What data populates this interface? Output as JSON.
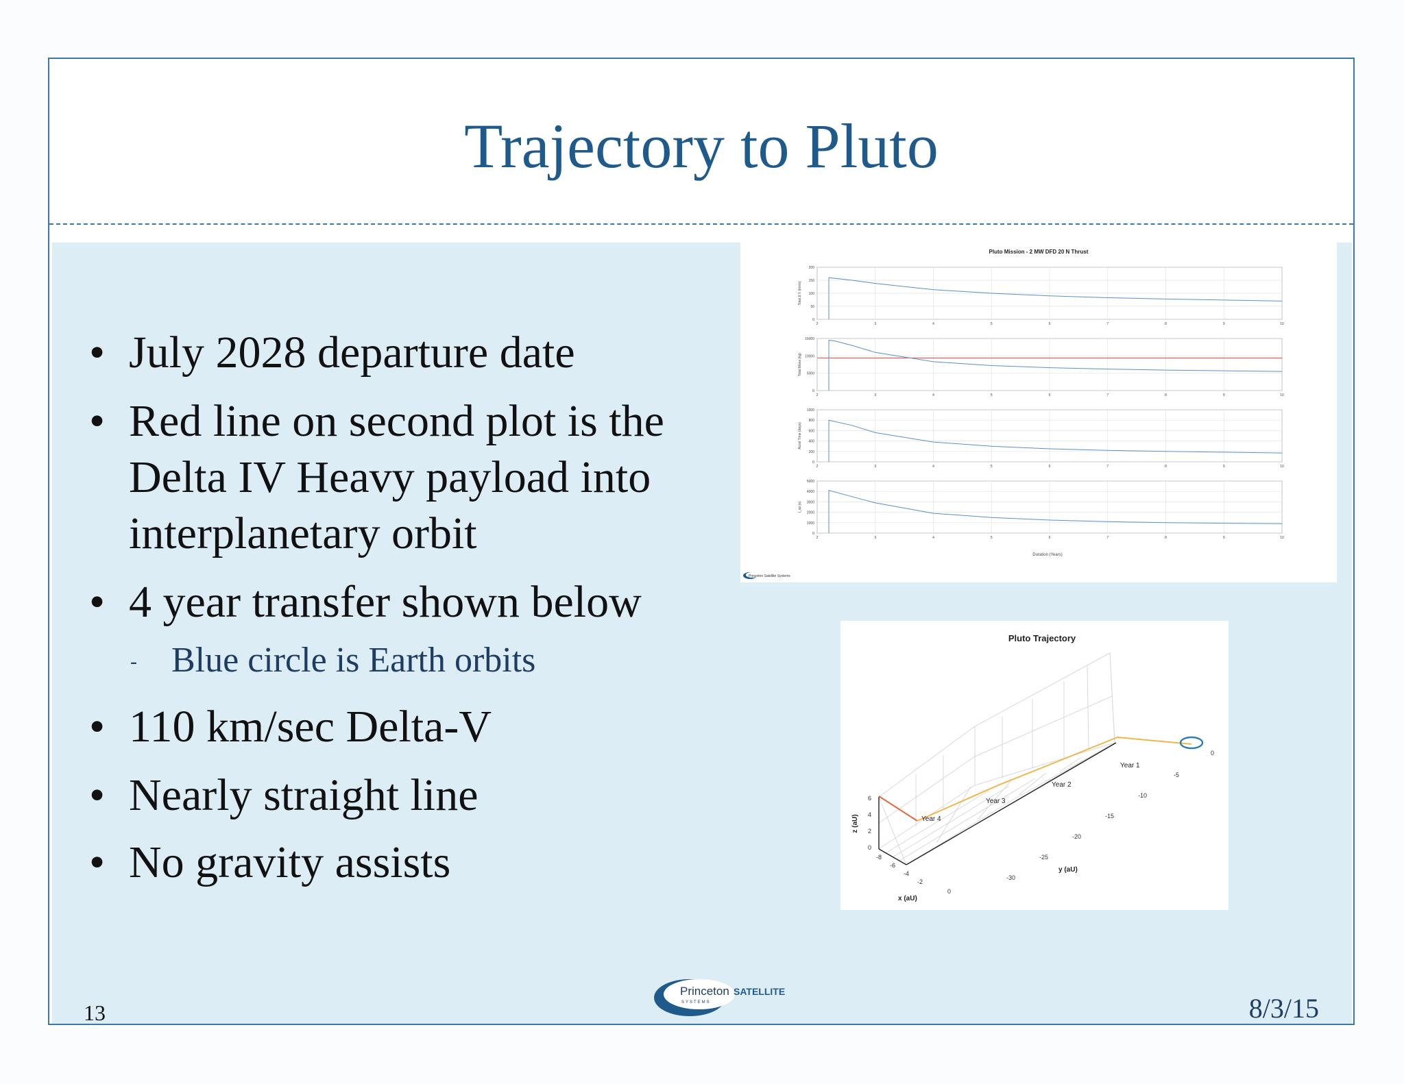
{
  "slide": {
    "title": "Trajectory to Pluto",
    "page_number": "13",
    "date": "8/3/15",
    "logo": {
      "line1": "Princeton",
      "line1b": "SATELLITE",
      "line2": "SYSTEMS"
    }
  },
  "bullets": [
    {
      "text": "July 2028 departure date"
    },
    {
      "lines": [
        "Red line on second plot is the",
        "Delta IV Heavy payload into",
        "interplanetary orbit"
      ]
    },
    {
      "text": "4 year transfer shown below"
    },
    {
      "text": "110 km/sec Delta-V"
    },
    {
      "text": "Nearly straight line"
    },
    {
      "text": "No gravity assists"
    }
  ],
  "sub_bullet": {
    "dash": "-",
    "text": "Blue circle is Earth orbits"
  },
  "chart_data": [
    {
      "type": "line",
      "title": "Pluto Mission - 2 MW DFD 20 N Thrust",
      "xlabel": "Duration (Years)",
      "xlim": [
        2,
        10
      ],
      "x_ticks": [
        "2",
        "3",
        "4",
        "5",
        "6",
        "7",
        "8",
        "9",
        "10"
      ],
      "footer": "Princeton Satellite Systems",
      "panels": [
        {
          "ylabel": "Total Δ V (km/s)",
          "ylim": [
            0,
            200
          ],
          "y_ticks": [
            "200",
            "150",
            "100",
            "50",
            "0"
          ],
          "series": [
            {
              "color": "#5b8fc9",
              "x": [
                2.2,
                2.2,
                2.6,
                3,
                4,
                5,
                6,
                7,
                8,
                9,
                10
              ],
              "y": [
                0,
                160,
                150,
                138,
                114,
                100,
                90,
                83,
                78,
                74,
                70
              ]
            }
          ]
        },
        {
          "ylabel": "Total Mass (kg)",
          "ylim": [
            0,
            15000
          ],
          "y_ticks": [
            "15000",
            "10000",
            "5000",
            "0"
          ],
          "reference": {
            "y": 9400,
            "color": "#e0463a"
          },
          "series": [
            {
              "color": "#5b8fc9",
              "x": [
                2.2,
                2.2,
                2.3,
                2.6,
                3,
                4,
                5,
                6,
                7,
                8,
                9,
                10
              ],
              "y": [
                0,
                14500,
                14300,
                13000,
                11000,
                8300,
                7200,
                6600,
                6200,
                5900,
                5700,
                5500
              ]
            }
          ]
        },
        {
          "ylabel": "Accel Time (days)",
          "ylim": [
            0,
            1000
          ],
          "y_ticks": [
            "1000",
            "800",
            "600",
            "400",
            "200",
            "0"
          ],
          "series": [
            {
              "color": "#5b8fc9",
              "x": [
                2.2,
                2.2,
                2.6,
                3,
                4,
                5,
                6,
                7,
                8,
                9,
                10
              ],
              "y": [
                0,
                800,
                700,
                560,
                380,
                300,
                250,
                220,
                200,
                185,
                170
              ]
            }
          ]
        },
        {
          "ylabel": "I_sp (s)",
          "ylim": [
            0,
            5000
          ],
          "y_ticks": [
            "5000",
            "4000",
            "3000",
            "2000",
            "1000",
            "0"
          ],
          "series": [
            {
              "color": "#5b8fc9",
              "x": [
                2.2,
                2.2,
                2.6,
                3,
                4,
                5,
                6,
                7,
                8,
                9,
                10
              ],
              "y": [
                0,
                4100,
                3500,
                2900,
                1900,
                1500,
                1250,
                1100,
                1000,
                950,
                900
              ]
            }
          ]
        }
      ]
    },
    {
      "type": "line",
      "title": "Pluto Trajectory",
      "xlabel": "x (aU)",
      "ylabel": "y (aU)",
      "zlabel": "z (aU)",
      "x_ticks": [
        "-8",
        "-6",
        "-4",
        "-2",
        "0"
      ],
      "y_ticks": [
        "0",
        "-5",
        "-10",
        "-15",
        "-20",
        "-25",
        "-30"
      ],
      "z_ticks": [
        "6",
        "4",
        "2",
        "0"
      ],
      "markers": [
        "Year 1",
        "Year 2",
        "Year 3",
        "Year 4"
      ],
      "earth_orbit_color": "#2c7bbd",
      "transfer_color": "#f0b64a",
      "final_color": "#e06a3c"
    }
  ]
}
